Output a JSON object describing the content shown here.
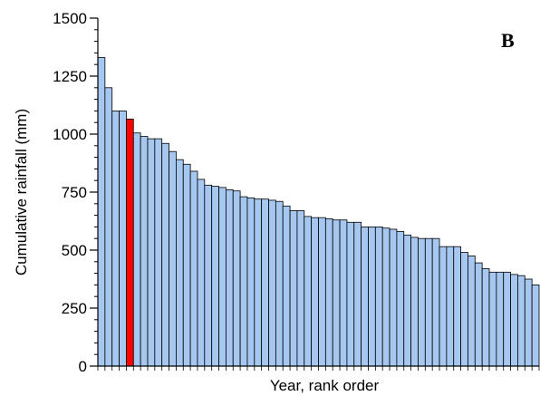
{
  "chart_data": {
    "type": "bar",
    "panel_label": "B",
    "xlabel": "Year, rank order",
    "ylabel": "Cumulative rainfall (mm)",
    "ylim": [
      0,
      1500
    ],
    "yticks": [
      0,
      250,
      500,
      750,
      1000,
      1250,
      1500
    ],
    "grid": false,
    "legend": "none",
    "colors": {
      "bar": "#a6c8f0",
      "highlight": "#ff0000",
      "edge": "#000000"
    },
    "highlight_index": 4,
    "values": [
      1330,
      1200,
      1100,
      1100,
      1065,
      1005,
      990,
      980,
      980,
      960,
      925,
      890,
      870,
      840,
      805,
      780,
      775,
      770,
      760,
      755,
      730,
      725,
      720,
      720,
      715,
      710,
      690,
      670,
      670,
      645,
      640,
      640,
      635,
      630,
      630,
      620,
      620,
      600,
      600,
      600,
      595,
      590,
      580,
      565,
      555,
      550,
      550,
      550,
      515,
      515,
      515,
      490,
      475,
      445,
      420,
      405,
      405,
      405,
      395,
      390,
      375,
      350
    ]
  }
}
